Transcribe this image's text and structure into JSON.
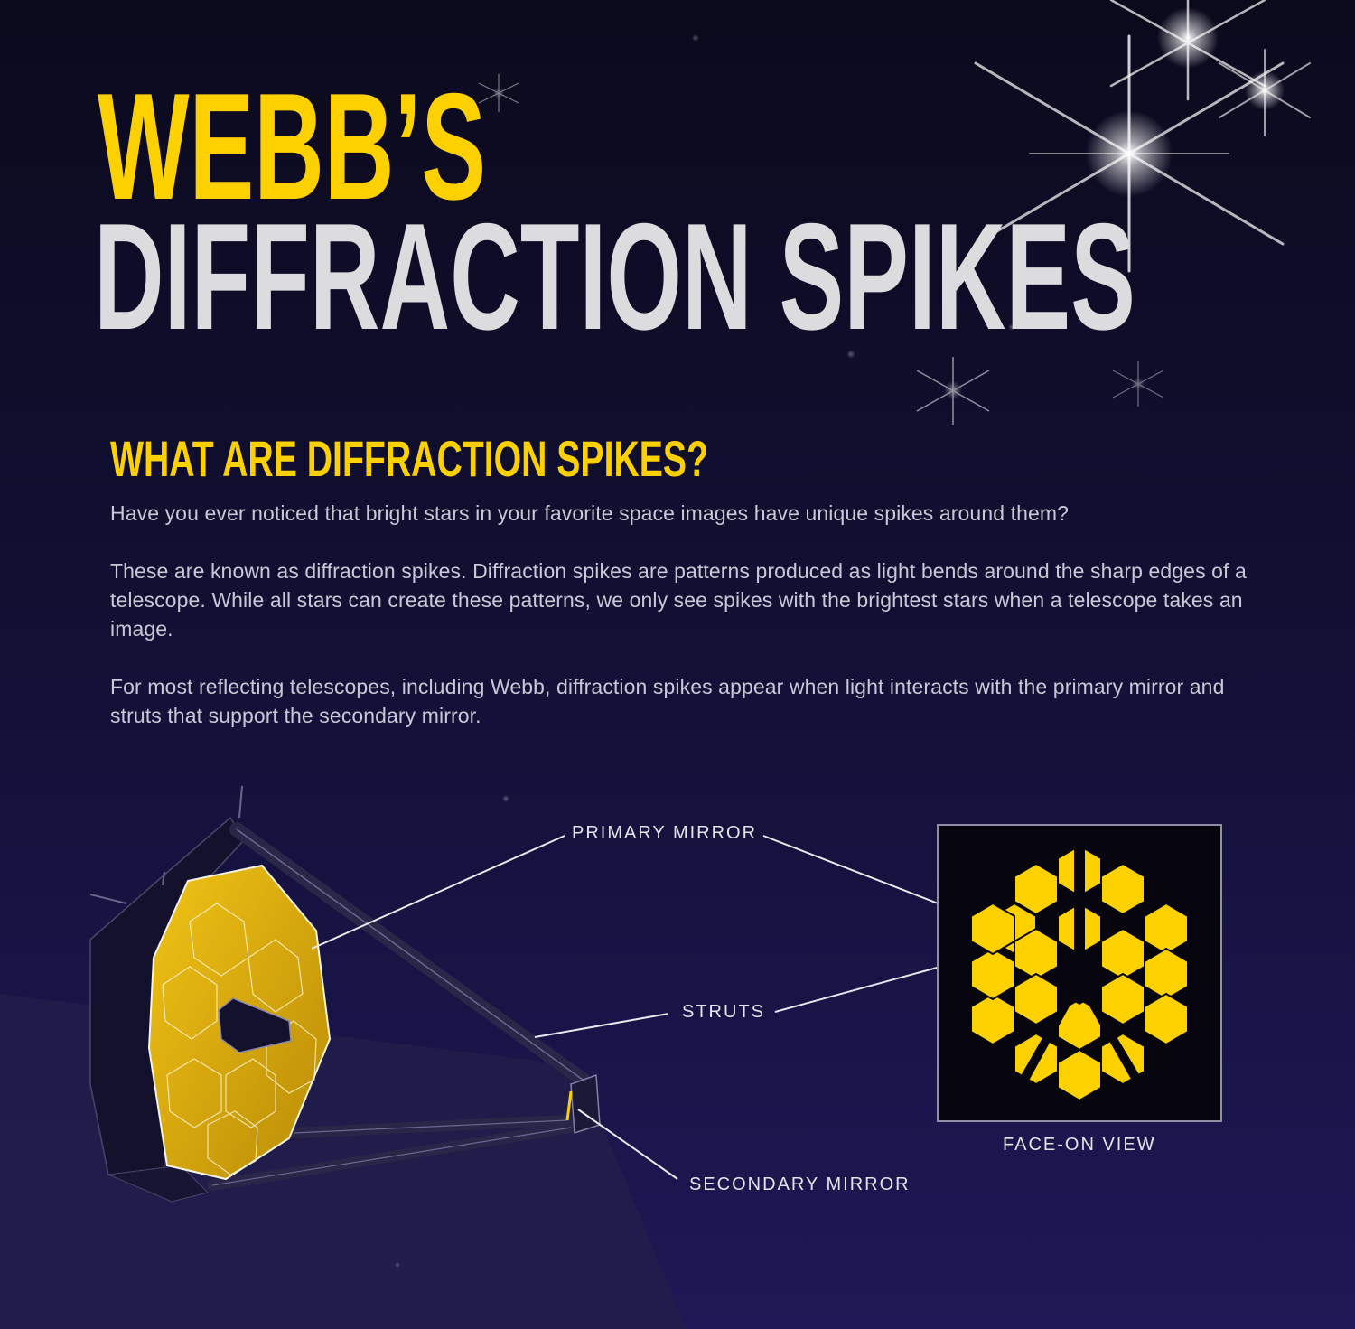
{
  "title": {
    "line1": "WEBB’S",
    "line2": "DIFFRACTION SPIKES"
  },
  "section": {
    "heading": "WHAT ARE DIFFRACTION SPIKES?",
    "paragraphs": [
      "Have you ever noticed that bright stars in your favorite space images have unique spikes around them?",
      "These are known as diffraction spikes. Diffraction spikes are patterns produced as light bends around the sharp edges of a telescope. While all stars can create these patterns, we only see spikes with the brightest stars when a telescope takes an image.",
      "For most reflecting telescopes, including Webb, diffraction spikes appear when light interacts with the primary mirror and struts that support the secondary mirror."
    ]
  },
  "diagram": {
    "labels": {
      "primary_mirror": "PRIMARY MIRROR",
      "struts": "STRUTS",
      "secondary_mirror": "SECONDARY MIRROR",
      "face_on_view": "FACE-ON VIEW"
    }
  },
  "colors": {
    "background": "#0d0b22",
    "accent_yellow": "#fdd000",
    "title_gray": "#dcdcde",
    "body_text": "#c9c8d6"
  }
}
